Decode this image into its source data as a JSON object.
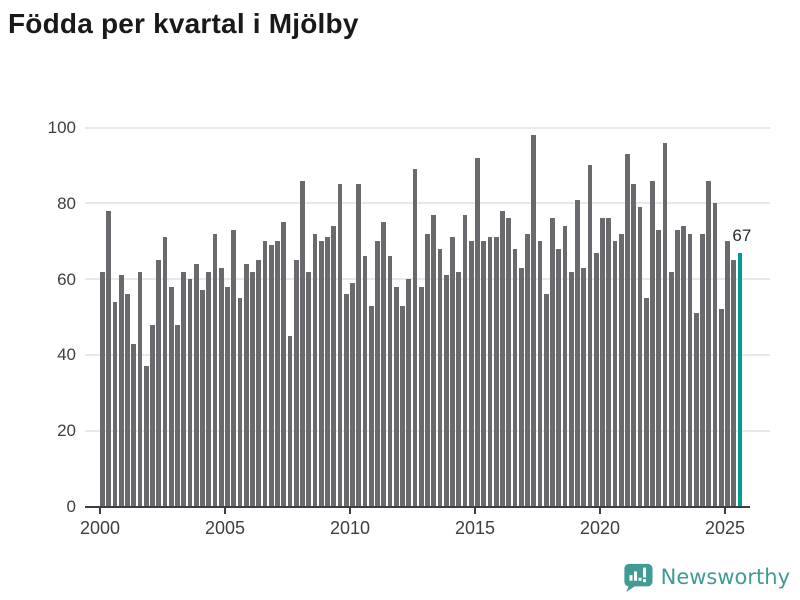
{
  "chart_data": {
    "type": "bar",
    "title": "Födda per kvartal i Mjölby",
    "x_tick_labels": [
      "2000",
      "2005",
      "2010",
      "2015",
      "2020",
      "2025"
    ],
    "y_tick_labels": [
      "0",
      "20",
      "40",
      "60",
      "80",
      "100"
    ],
    "y_ticks": [
      0,
      20,
      40,
      60,
      80,
      100
    ],
    "ylim": [
      0,
      100
    ],
    "grid": true,
    "x_range": {
      "start": "2000 Q1",
      "end": "2025 Q3",
      "step": "quarter"
    },
    "bar_color": "#69696e",
    "values": [
      62,
      78,
      54,
      61,
      56,
      43,
      62,
      37,
      48,
      65,
      71,
      58,
      48,
      62,
      60,
      64,
      57,
      62,
      72,
      63,
      58,
      73,
      55,
      64,
      62,
      65,
      70,
      69,
      70,
      75,
      45,
      65,
      86,
      62,
      72,
      70,
      71,
      74,
      85,
      56,
      59,
      85,
      66,
      53,
      70,
      75,
      66,
      58,
      53,
      60,
      89,
      58,
      72,
      77,
      68,
      61,
      71,
      62,
      77,
      70,
      92,
      70,
      71,
      71,
      78,
      76,
      68,
      63,
      72,
      98,
      70,
      56,
      76,
      68,
      74,
      62,
      81,
      63,
      90,
      67,
      76,
      76,
      70,
      72,
      93,
      85,
      79,
      55,
      86,
      73,
      96,
      62,
      73,
      74,
      72,
      51,
      72,
      86,
      80,
      52,
      70,
      65,
      67
    ],
    "highlight": {
      "index": 102,
      "value": 67,
      "label": "67",
      "color": "#009c96"
    }
  },
  "logo": {
    "text": "Newsworthy",
    "color": "#3f9b94",
    "icon": "newsworthy-bubble-chart-icon"
  }
}
